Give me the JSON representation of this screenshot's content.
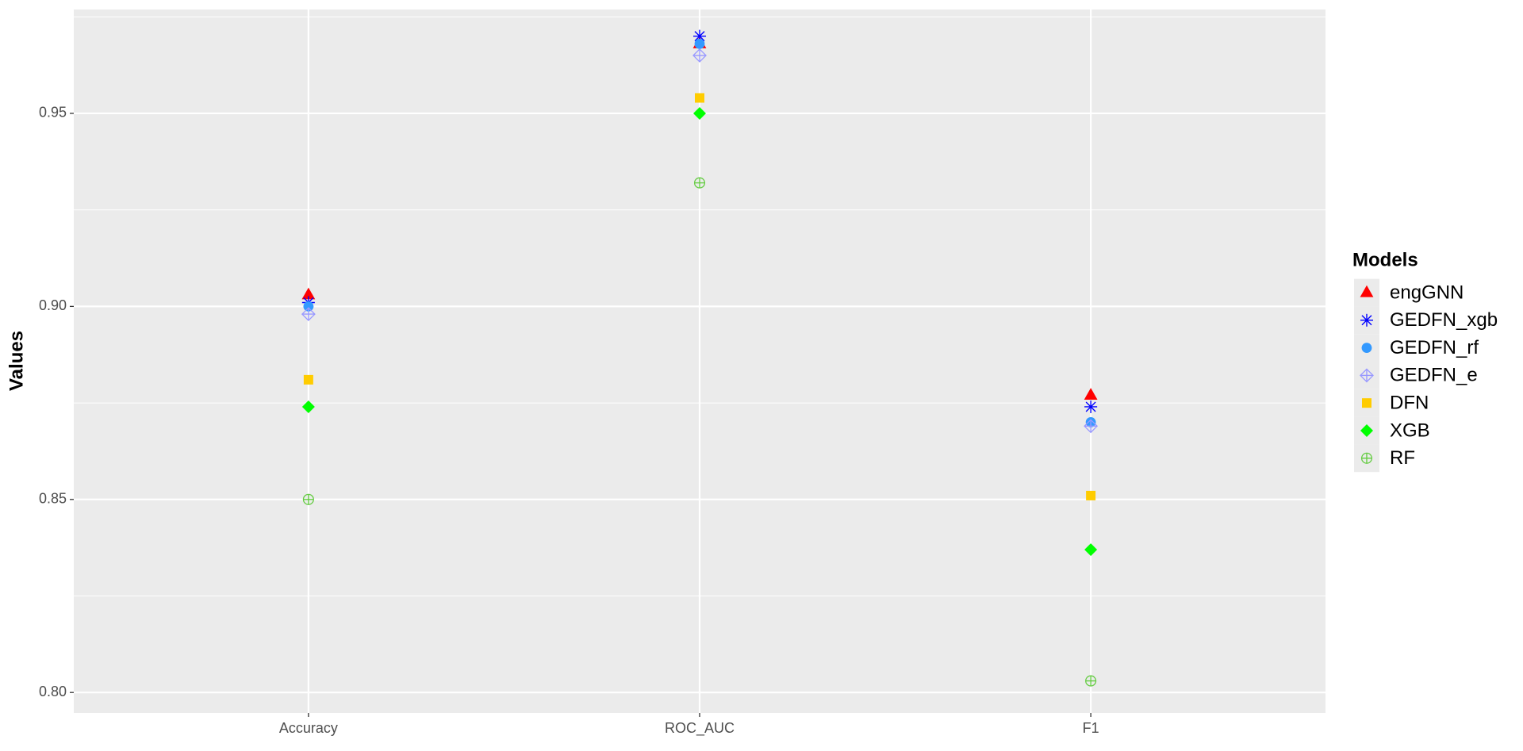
{
  "chart_data": {
    "type": "scatter",
    "y_label": "Values",
    "legend_title": "Models",
    "categories": [
      "Accuracy",
      "ROC_AUC",
      "F1"
    ],
    "ylim": [
      0.7947,
      0.9769
    ],
    "yticks": [
      {
        "value": 0.8,
        "label": "0.80"
      },
      {
        "value": 0.85,
        "label": "0.85"
      },
      {
        "value": 0.9,
        "label": "0.90"
      },
      {
        "value": 0.95,
        "label": "0.95"
      }
    ],
    "y_minor_ticks": [
      0.825,
      0.875,
      0.925,
      0.975
    ],
    "grid": true,
    "legend": "right",
    "series": [
      {
        "name": "engGNN",
        "color": "#ff0000",
        "shape": "triangle",
        "values": [
          0.903,
          0.968,
          0.877
        ]
      },
      {
        "name": "GEDFN_xgb",
        "color": "#0000ff",
        "shape": "asterisk",
        "values": [
          0.901,
          0.97,
          0.874
        ]
      },
      {
        "name": "GEDFN_rf",
        "color": "#3399ff",
        "shape": "circle",
        "values": [
          0.9,
          0.968,
          0.87
        ]
      },
      {
        "name": "GEDFN_e",
        "color": "#9999ff",
        "shape": "diamond-plus",
        "values": [
          0.898,
          0.965,
          0.869
        ]
      },
      {
        "name": "DFN",
        "color": "#ffcc00",
        "shape": "square",
        "values": [
          0.881,
          0.954,
          0.851
        ]
      },
      {
        "name": "XGB",
        "color": "#00ff00",
        "shape": "diamond",
        "values": [
          0.874,
          0.95,
          0.837
        ]
      },
      {
        "name": "RF",
        "color": "#66cc44",
        "shape": "circle-plus",
        "values": [
          0.85,
          0.932,
          0.803
        ]
      }
    ]
  }
}
